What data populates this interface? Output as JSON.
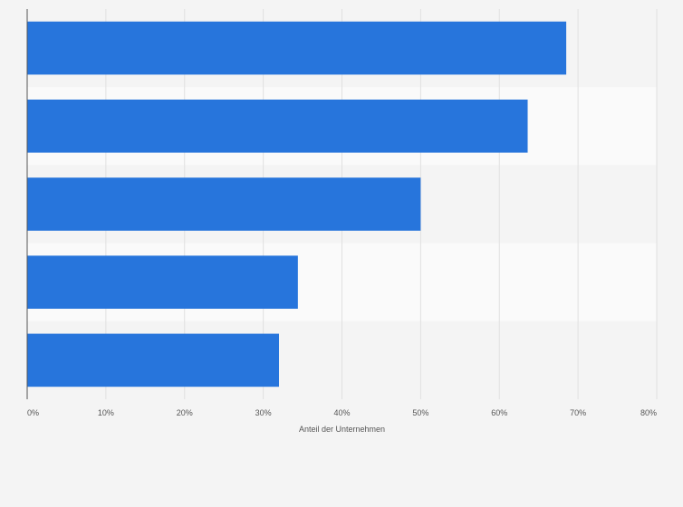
{
  "chart_data": {
    "type": "bar",
    "orientation": "horizontal",
    "categories": [
      "",
      "",
      "",
      "",
      ""
    ],
    "values": [
      68.5,
      63.6,
      50.0,
      34.4,
      32.0
    ],
    "xlim": [
      0,
      80
    ],
    "x_ticks": [
      0,
      10,
      20,
      30,
      40,
      50,
      60,
      70,
      80
    ],
    "tick_labels": [
      "0%",
      "10%",
      "20%",
      "30%",
      "40%",
      "50%",
      "60%",
      "70%",
      "80%"
    ],
    "xlabel": "Anteil der Unternehmen",
    "ylabel": "",
    "grid": true,
    "legend": "none",
    "bar_color": "#2775dc",
    "band_colors": [
      "#f4f4f4",
      "#fafafa"
    ]
  }
}
